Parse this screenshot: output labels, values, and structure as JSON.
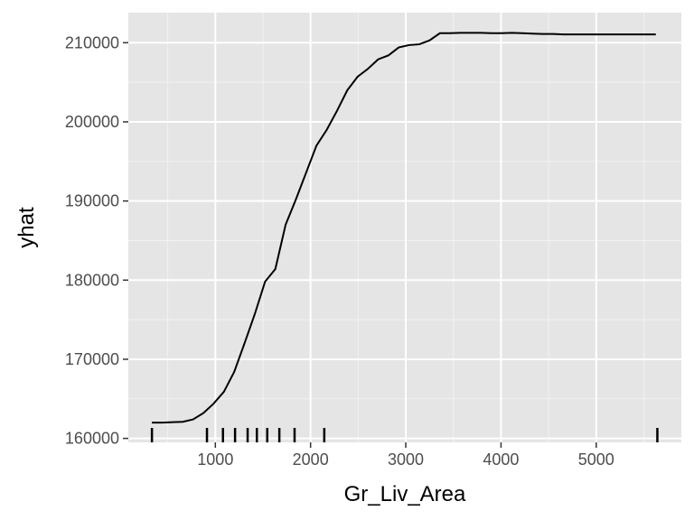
{
  "chart_data": {
    "type": "line",
    "title": "",
    "xlabel": "Gr_Liv_Area",
    "ylabel": "yhat",
    "xlim": [
      86,
      5894
    ],
    "ylim": [
      159500,
      213800
    ],
    "x_ticks": [
      1000,
      2000,
      3000,
      4000,
      5000
    ],
    "x_minor_ticks": [
      500,
      1500,
      2500,
      3500,
      4500,
      5500
    ],
    "y_ticks": [
      160000,
      170000,
      180000,
      190000,
      200000,
      210000
    ],
    "y_minor_ticks": [
      165000,
      175000,
      185000,
      195000,
      205000
    ],
    "tick_labels_x": [
      "1000",
      "2000",
      "3000",
      "4000",
      "5000"
    ],
    "tick_labels_y": [
      "160000",
      "170000",
      "180000",
      "190000",
      "200000",
      "210000"
    ],
    "grid": true,
    "background": "#e5e5e5",
    "grid_color": "#ffffff",
    "line_color": "#000000",
    "series": [
      {
        "x": [
          334,
          442,
          550,
          658,
          766,
          874,
          982,
          1090,
          1198,
          1306,
          1414,
          1522,
          1630,
          1738,
          1846,
          1954,
          2062,
          2170,
          2278,
          2386,
          2494,
          2602,
          2710,
          2818,
          2926,
          3034,
          3142,
          3250,
          3358,
          3466,
          3574,
          3682,
          3790,
          3898,
          4006,
          4114,
          4222,
          4330,
          4438,
          4546,
          4654,
          4762,
          4870,
          4978,
          5086,
          5194,
          5302,
          5410,
          5518,
          5626
        ],
        "y": [
          162000,
          162000,
          162050,
          162100,
          162400,
          163200,
          164400,
          165900,
          168400,
          172000,
          175700,
          179800,
          181400,
          187000,
          190200,
          193600,
          197000,
          199000,
          201400,
          204000,
          205700,
          206700,
          207900,
          208400,
          209400,
          209700,
          209800,
          210300,
          211200,
          211200,
          211250,
          211250,
          211250,
          211200,
          211200,
          211250,
          211200,
          211150,
          211100,
          211100,
          211050,
          211050,
          211050,
          211050,
          211050,
          211050,
          211050,
          211050,
          211050,
          211050
        ]
      }
    ],
    "rug_x": [
      334,
      912,
      1080,
      1207,
      1339,
      1436,
      1545,
      1672,
      1832,
      2144,
      5642
    ]
  }
}
